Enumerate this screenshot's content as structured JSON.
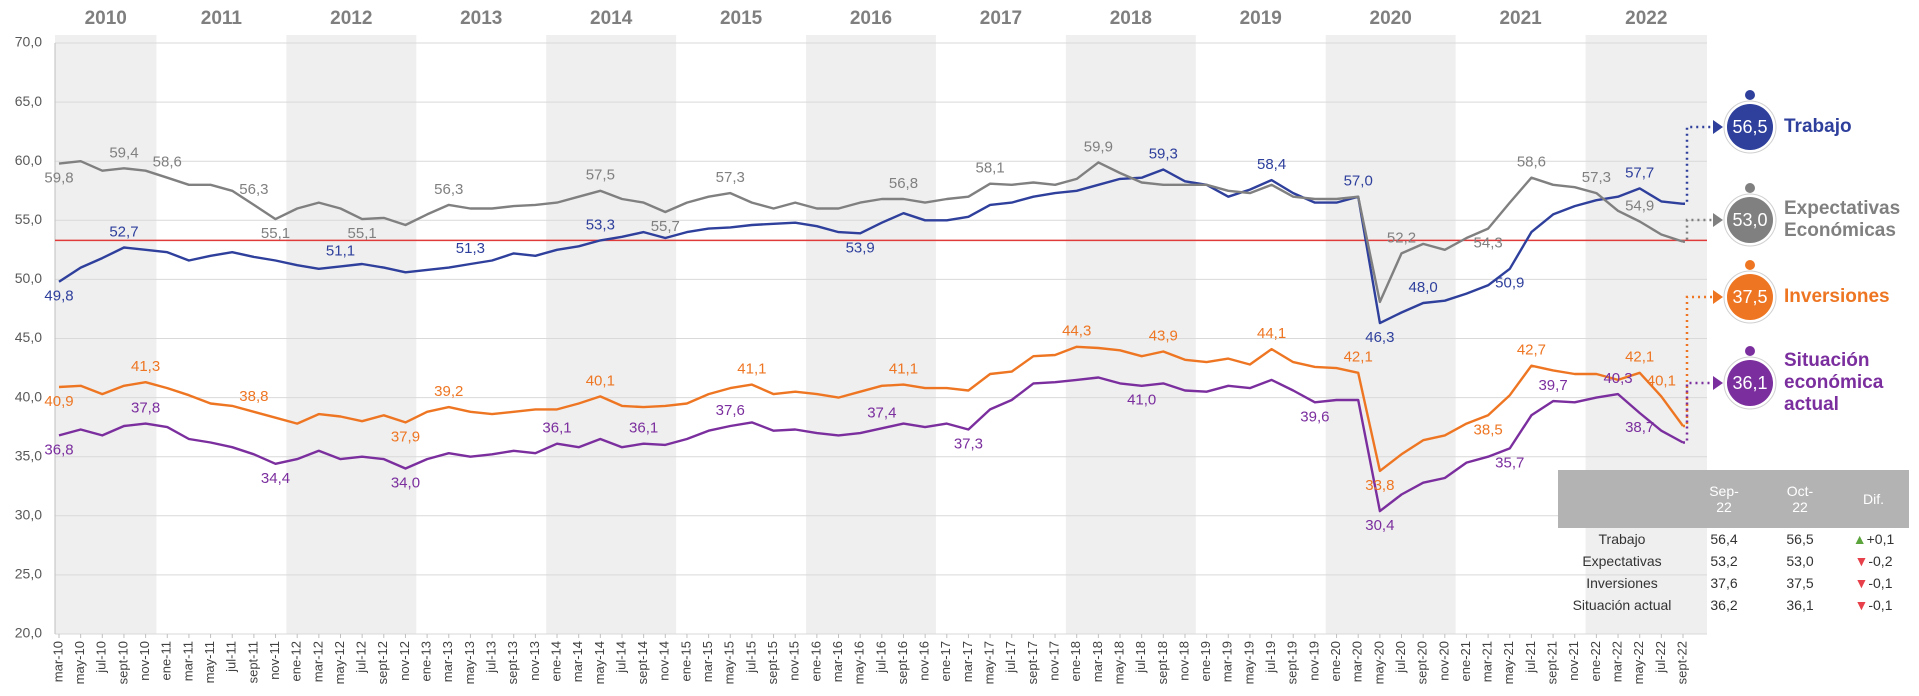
{
  "chart_data": {
    "type": "line",
    "years": [
      "2010",
      "2011",
      "2012",
      "2013",
      "2014",
      "2015",
      "2016",
      "2017",
      "2018",
      "2019",
      "2020",
      "2021",
      "2022"
    ],
    "categories": [
      "mar-10",
      "may-10",
      "jul-10",
      "sept-10",
      "nov-10",
      "ene-11",
      "mar-11",
      "may-11",
      "jul-11",
      "sept-11",
      "nov-11",
      "ene-12",
      "mar-12",
      "may-12",
      "jul-12",
      "sept-12",
      "nov-12",
      "ene-13",
      "mar-13",
      "may-13",
      "jul-13",
      "sept-13",
      "nov-13",
      "ene-14",
      "mar-14",
      "may-14",
      "jul-14",
      "sept-14",
      "nov-14",
      "ene-15",
      "mar-15",
      "may-15",
      "jul-15",
      "sept-15",
      "nov-15",
      "ene-16",
      "mar-16",
      "may-16",
      "jul-16",
      "sept-16",
      "nov-16",
      "ene-17",
      "mar-17",
      "may-17",
      "jul-17",
      "sept-17",
      "nov-17",
      "ene-18",
      "mar-18",
      "may-18",
      "jul-18",
      "sept-18",
      "nov-18",
      "ene-19",
      "mar-19",
      "may-19",
      "jul-19",
      "sept-19",
      "nov-19",
      "ene-20",
      "mar-20",
      "may-20",
      "jul-20",
      "sept-20",
      "nov-20",
      "ene-21",
      "mar-21",
      "may-21",
      "jul-21",
      "sept-21",
      "nov-21",
      "ene-22",
      "mar-22",
      "may-22",
      "jul-22",
      "sept-22"
    ],
    "ylim": [
      20,
      70
    ],
    "yticks": [
      {
        "value": 20,
        "label": "20,0"
      },
      {
        "value": 25,
        "label": "25,0"
      },
      {
        "value": 30,
        "label": "30,0"
      },
      {
        "value": 35,
        "label": "35,0"
      },
      {
        "value": 40,
        "label": "40,0"
      },
      {
        "value": 45,
        "label": "45,0"
      },
      {
        "value": 50,
        "label": "50,0"
      },
      {
        "value": 55,
        "label": "55,0"
      },
      {
        "value": 60,
        "label": "60,0"
      },
      {
        "value": 65,
        "label": "65,0"
      },
      {
        "value": 70,
        "label": "70,0"
      }
    ],
    "grid": true,
    "reference_line": {
      "value": 53.3,
      "color": "#e03a3a"
    },
    "series": [
      {
        "name": "Trabajo",
        "color": "#2e3f9c",
        "values": [
          49.8,
          51.0,
          51.8,
          52.7,
          52.5,
          52.3,
          51.6,
          52.0,
          52.3,
          51.9,
          51.6,
          51.2,
          50.9,
          51.1,
          51.3,
          51.0,
          50.6,
          50.8,
          51.0,
          51.3,
          51.6,
          52.2,
          52.0,
          52.5,
          52.8,
          53.3,
          53.6,
          54.0,
          53.5,
          54.0,
          54.3,
          54.4,
          54.6,
          54.7,
          54.8,
          54.5,
          54.0,
          53.9,
          54.8,
          55.6,
          55.0,
          55.0,
          55.3,
          56.3,
          56.5,
          57.0,
          57.3,
          57.5,
          58.0,
          58.5,
          58.6,
          59.3,
          58.3,
          58.0,
          57.0,
          57.6,
          58.4,
          57.3,
          56.5,
          56.5,
          57.0,
          46.3,
          47.2,
          48.0,
          48.2,
          48.8,
          49.5,
          50.9,
          54.0,
          55.5,
          56.2,
          56.7,
          57.0,
          57.7,
          56.6,
          56.4
        ],
        "value_labels": [
          "49,8",
          null,
          null,
          "52,7",
          null,
          null,
          null,
          null,
          null,
          null,
          null,
          null,
          null,
          "51,1",
          null,
          null,
          null,
          null,
          null,
          "51,3",
          null,
          null,
          null,
          null,
          null,
          "53,3",
          null,
          null,
          null,
          null,
          null,
          null,
          null,
          null,
          null,
          null,
          null,
          "53,9",
          null,
          null,
          null,
          null,
          null,
          null,
          null,
          null,
          null,
          null,
          null,
          null,
          null,
          "59,3",
          null,
          null,
          null,
          null,
          "58,4",
          null,
          null,
          null,
          "57,0",
          "46,3",
          null,
          "48,0",
          null,
          null,
          null,
          "50,9",
          null,
          null,
          null,
          null,
          null,
          "57,7",
          null,
          null
        ],
        "latest": 56.5,
        "latest_label": "56,5"
      },
      {
        "name": "Expectativas Económicas",
        "color": "#808080",
        "values": [
          59.8,
          60.0,
          59.2,
          59.4,
          59.2,
          58.6,
          58.0,
          58.0,
          57.5,
          56.3,
          55.1,
          56.0,
          56.5,
          56.0,
          55.1,
          55.2,
          54.6,
          55.5,
          56.3,
          56.0,
          56.0,
          56.2,
          56.3,
          56.5,
          57.0,
          57.5,
          56.8,
          56.5,
          55.7,
          56.5,
          57.0,
          57.3,
          56.5,
          56.0,
          56.5,
          56.0,
          56.0,
          56.5,
          56.8,
          56.8,
          56.5,
          56.8,
          57.0,
          58.1,
          58.0,
          58.2,
          58.0,
          58.5,
          59.9,
          59.0,
          58.2,
          58.0,
          58.0,
          58.0,
          57.5,
          57.3,
          58.0,
          57.0,
          56.8,
          56.8,
          57.0,
          48.1,
          52.2,
          53.0,
          52.5,
          53.5,
          54.3,
          56.5,
          58.6,
          58.0,
          57.8,
          57.3,
          55.8,
          54.9,
          53.8,
          53.2
        ],
        "value_labels": [
          "59,8",
          null,
          null,
          "59,4",
          null,
          "58,6",
          null,
          null,
          null,
          "56,3",
          "55,1",
          null,
          null,
          null,
          "55,1",
          null,
          null,
          null,
          "56,3",
          null,
          null,
          null,
          null,
          null,
          null,
          "57,5",
          null,
          null,
          "55,7",
          null,
          null,
          "57,3",
          null,
          null,
          null,
          null,
          null,
          null,
          null,
          "56,8",
          null,
          null,
          null,
          "58,1",
          null,
          null,
          null,
          null,
          "59,9",
          null,
          null,
          null,
          null,
          null,
          null,
          null,
          null,
          null,
          null,
          null,
          null,
          null,
          "52,2",
          null,
          null,
          null,
          "54,3",
          null,
          "58,6",
          null,
          null,
          "57,3",
          null,
          "54,9",
          null,
          null
        ],
        "latest": 53.0,
        "latest_label": "53,0"
      },
      {
        "name": "Inversiones",
        "color": "#ee7623",
        "values": [
          40.9,
          41.0,
          40.3,
          41.0,
          41.3,
          40.8,
          40.2,
          39.5,
          39.3,
          38.8,
          38.3,
          37.8,
          38.6,
          38.4,
          38.0,
          38.5,
          37.9,
          38.8,
          39.2,
          38.8,
          38.6,
          38.8,
          39.0,
          39.0,
          39.5,
          40.1,
          39.3,
          39.2,
          39.3,
          39.5,
          40.3,
          40.8,
          41.1,
          40.3,
          40.5,
          40.3,
          40.0,
          40.5,
          41.0,
          41.1,
          40.8,
          40.8,
          40.6,
          42.0,
          42.2,
          43.5,
          43.6,
          44.3,
          44.2,
          44.0,
          43.5,
          43.9,
          43.2,
          43.0,
          43.3,
          42.8,
          44.1,
          43.0,
          42.6,
          42.5,
          42.1,
          33.8,
          35.2,
          36.4,
          36.8,
          37.8,
          38.5,
          40.2,
          42.7,
          42.3,
          42.0,
          42.0,
          41.5,
          42.1,
          40.1,
          37.6
        ],
        "value_labels": [
          "40,9",
          null,
          null,
          null,
          "41,3",
          null,
          null,
          null,
          null,
          "38,8",
          null,
          null,
          null,
          null,
          null,
          null,
          "37,9",
          null,
          "39,2",
          null,
          null,
          null,
          null,
          null,
          null,
          "40,1",
          null,
          null,
          null,
          null,
          null,
          null,
          "41,1",
          null,
          null,
          null,
          null,
          null,
          null,
          "41,1",
          null,
          null,
          null,
          null,
          null,
          null,
          null,
          "44,3",
          null,
          null,
          null,
          "43,9",
          null,
          null,
          null,
          null,
          "44,1",
          null,
          null,
          null,
          "42,1",
          "33,8",
          null,
          null,
          null,
          null,
          "38,5",
          null,
          "42,7",
          null,
          null,
          null,
          null,
          "42,1",
          "40,1",
          null
        ],
        "latest": 37.5,
        "latest_label": "37,5"
      },
      {
        "name": "Situación económica actual",
        "color": "#7b2e9e",
        "values": [
          36.8,
          37.3,
          36.8,
          37.6,
          37.8,
          37.5,
          36.5,
          36.2,
          35.8,
          35.2,
          34.4,
          34.8,
          35.5,
          34.8,
          35.0,
          34.8,
          34.0,
          34.8,
          35.3,
          35.0,
          35.2,
          35.5,
          35.3,
          36.1,
          35.8,
          36.5,
          35.8,
          36.1,
          36.0,
          36.5,
          37.2,
          37.6,
          37.9,
          37.2,
          37.3,
          37.0,
          36.8,
          37.0,
          37.4,
          37.8,
          37.5,
          37.8,
          37.3,
          39.0,
          39.8,
          41.2,
          41.3,
          41.5,
          41.7,
          41.2,
          41.0,
          41.2,
          40.6,
          40.5,
          41.0,
          40.8,
          41.5,
          40.6,
          39.6,
          39.8,
          39.8,
          30.4,
          31.8,
          32.8,
          33.2,
          34.5,
          35.0,
          35.7,
          38.5,
          39.7,
          39.6,
          40.0,
          40.3,
          38.7,
          37.2,
          36.2
        ],
        "value_labels": [
          "36,8",
          null,
          null,
          null,
          "37,8",
          null,
          null,
          null,
          null,
          null,
          "34,4",
          null,
          null,
          null,
          null,
          null,
          "34,0",
          null,
          null,
          null,
          null,
          null,
          null,
          "36,1",
          null,
          null,
          null,
          "36,1",
          null,
          null,
          null,
          "37,6",
          null,
          null,
          null,
          null,
          null,
          null,
          "37,4",
          null,
          null,
          null,
          "37,3",
          null,
          null,
          null,
          null,
          null,
          null,
          null,
          "41,0",
          null,
          null,
          null,
          null,
          null,
          null,
          null,
          "39,6",
          null,
          null,
          "30,4",
          null,
          null,
          null,
          null,
          null,
          "35,7",
          null,
          "39,7",
          null,
          null,
          "40,3",
          "38,7",
          null,
          null
        ],
        "latest": 36.1,
        "latest_label": "36,1"
      }
    ]
  },
  "table": {
    "columns": [
      "Sep-22",
      "Oct-22",
      "Dif."
    ],
    "rows": [
      [
        "Trabajo",
        "56,4",
        "56,5",
        "+0,1"
      ],
      [
        "Expectativas",
        "53,2",
        "53,0",
        "-0,2"
      ],
      [
        "Inversiones",
        "37,6",
        "37,5",
        "-0,1"
      ],
      [
        "Situación actual",
        "36,2",
        "36,1",
        "-0,1"
      ]
    ]
  }
}
